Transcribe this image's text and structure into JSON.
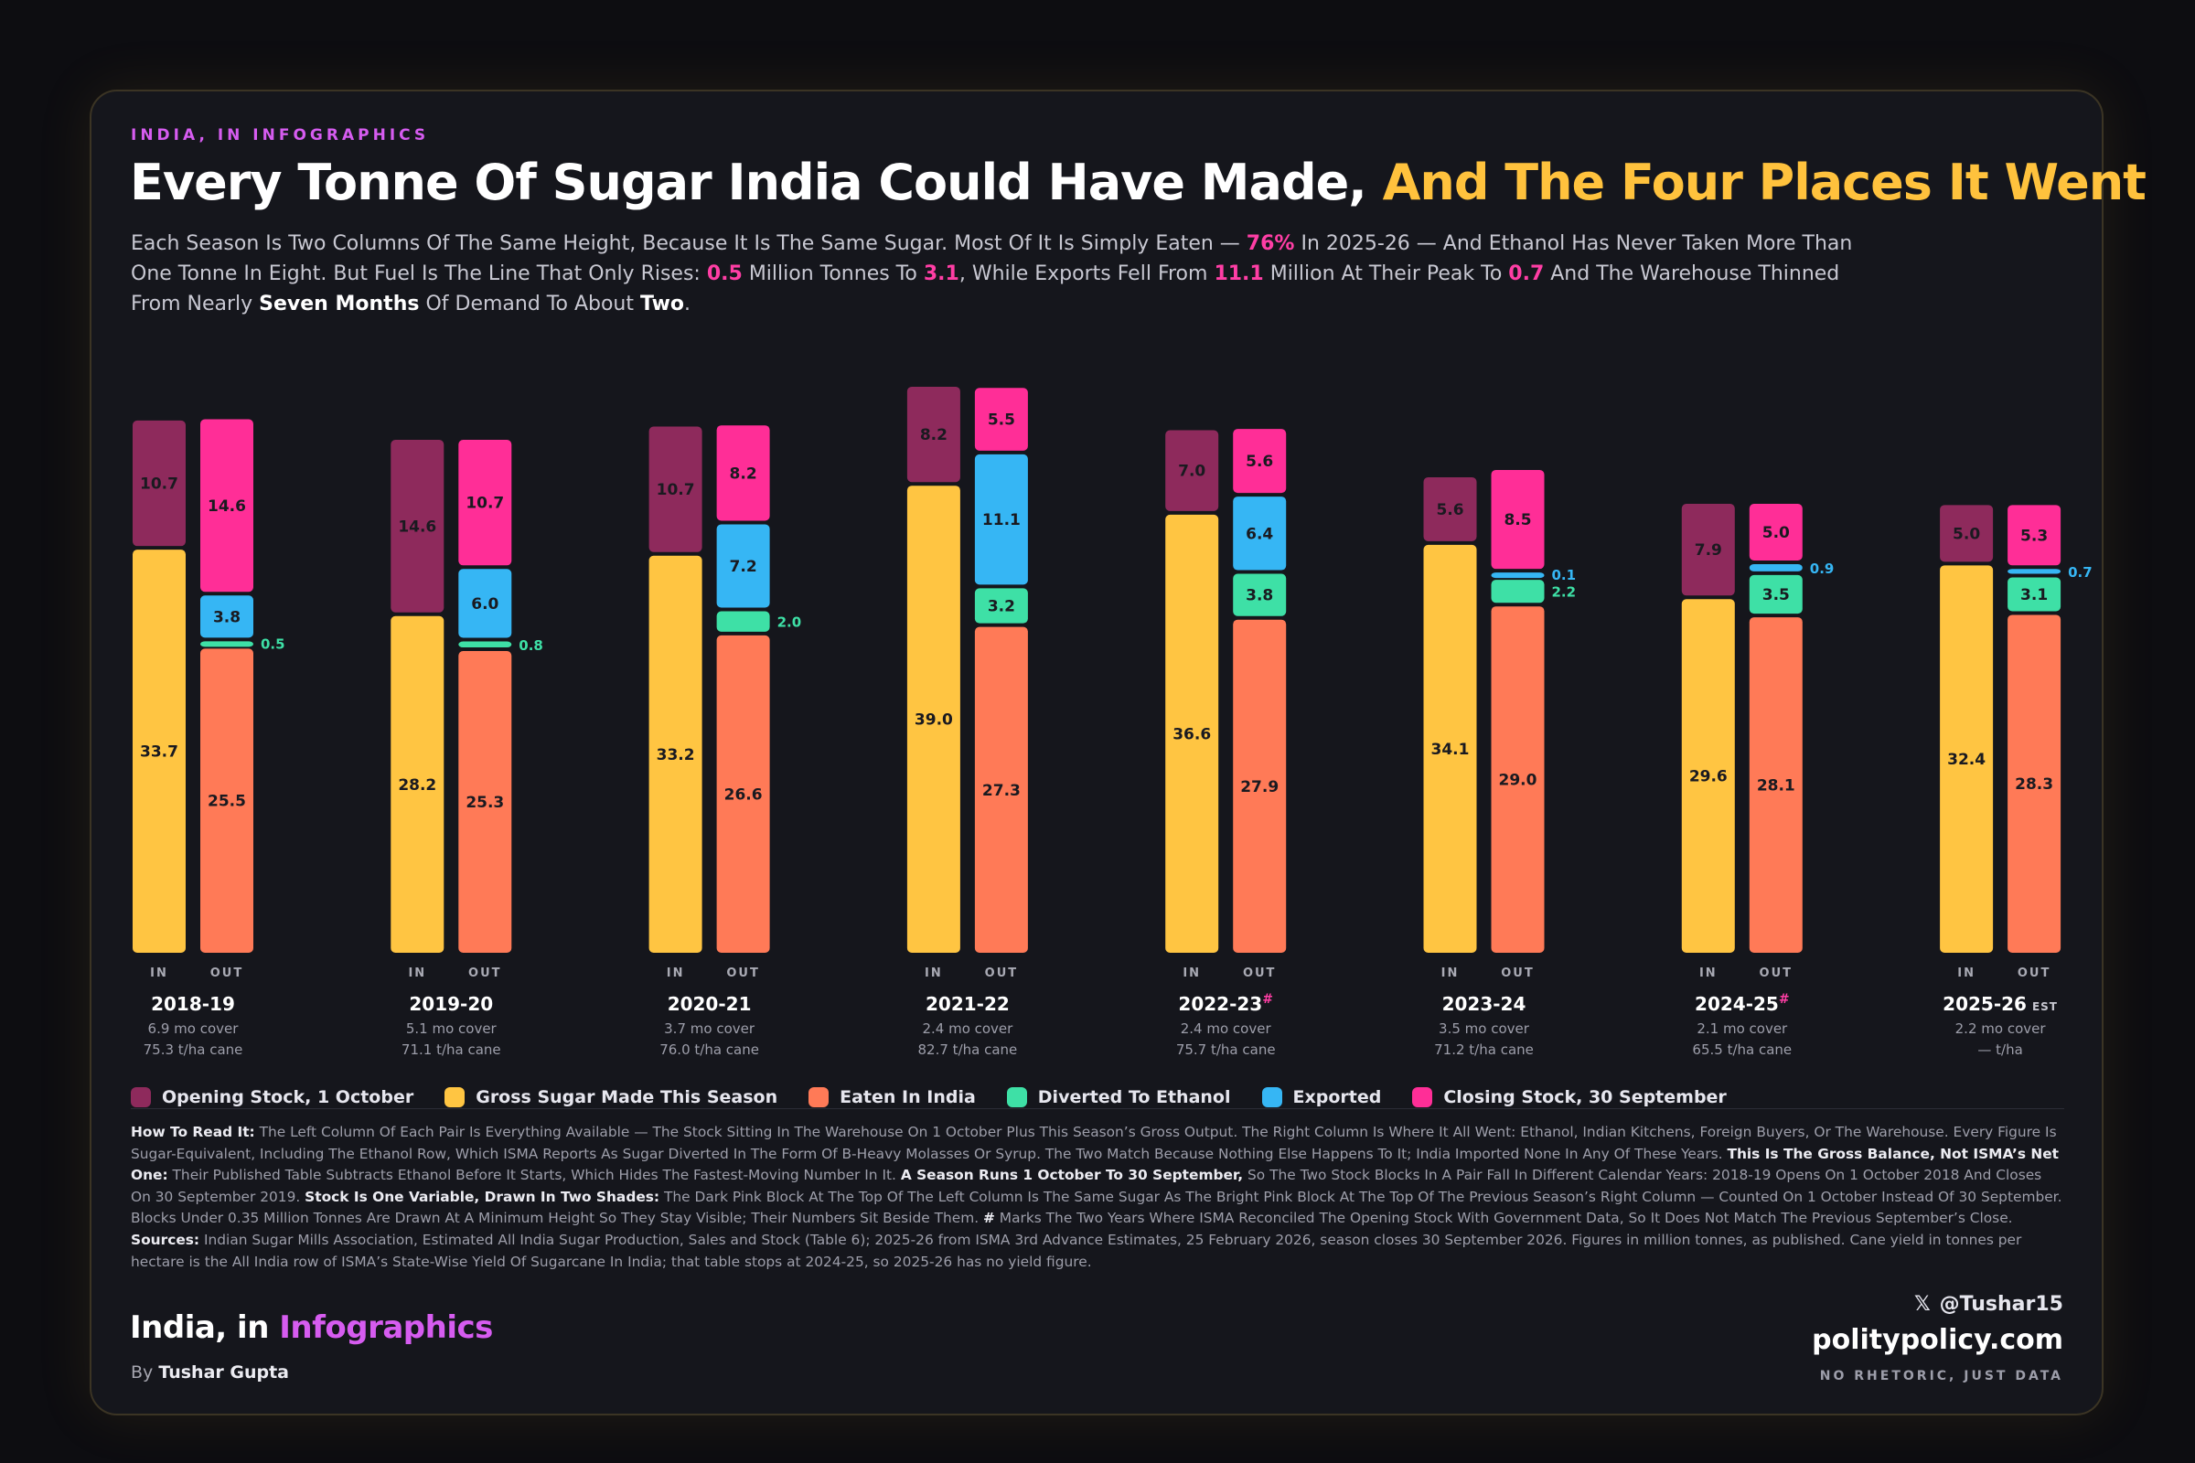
{
  "header": {
    "kicker": "INDIA, IN INFOGRAPHICS",
    "title_main": "Every Tonne Of Sugar India Could Have Made,",
    "title_highlight": " And The Four Places It Went",
    "subtitle": [
      {
        "t": "Each Season Is Two Columns Of The Same Height, Because It Is The Same Sugar. Most Of It Is Simply Eaten — "
      },
      {
        "t": "76%",
        "s": "pk"
      },
      {
        "t": " In 2025-26 — And Ethanol Has Never Taken More Than One Tonne In Eight. But Fuel Is The Line That Only Rises: "
      },
      {
        "t": "0.5",
        "s": "pk"
      },
      {
        "t": " Million Tonnes To "
      },
      {
        "t": "3.1",
        "s": "pk"
      },
      {
        "t": ", While Exports Fell From "
      },
      {
        "t": "11.1",
        "s": "pk"
      },
      {
        "t": " Million At Their Peak To "
      },
      {
        "t": "0.7",
        "s": "pk"
      },
      {
        "t": " And The Warehouse Thinned From Nearly "
      },
      {
        "t": "Seven Months",
        "s": "b"
      },
      {
        "t": " Of Demand To About "
      },
      {
        "t": "Two",
        "s": "b"
      },
      {
        "t": "."
      }
    ]
  },
  "colors": {
    "opening": "#8e2a5c",
    "gross": "#ffc542",
    "eaten": "#ff7a57",
    "ethanol": "#3ee0a6",
    "exported": "#36b6f4",
    "closing": "#ff2e97"
  },
  "chart_data": {
    "type": "bar",
    "stacked": true,
    "units": "million tonnes",
    "column_labels": [
      "IN",
      "OUT"
    ],
    "seasons": [
      {
        "season": "2018-19",
        "mark": "",
        "cover": "6.9 mo cover",
        "yield": "75.3 t/ha cane",
        "in": {
          "opening": 10.7,
          "gross": 33.7
        },
        "out": {
          "eaten": 25.5,
          "ethanol": 0.5,
          "exported": 3.8,
          "closing": 14.6
        }
      },
      {
        "season": "2019-20",
        "mark": "",
        "cover": "5.1 mo cover",
        "yield": "71.1 t/ha cane",
        "in": {
          "opening": 14.6,
          "gross": 28.2
        },
        "out": {
          "eaten": 25.3,
          "ethanol": 0.8,
          "exported": 6.0,
          "closing": 10.7
        }
      },
      {
        "season": "2020-21",
        "mark": "",
        "cover": "3.7 mo cover",
        "yield": "76.0 t/ha cane",
        "in": {
          "opening": 10.7,
          "gross": 33.2
        },
        "out": {
          "eaten": 26.6,
          "ethanol": 2.0,
          "exported": 7.2,
          "closing": 8.2
        }
      },
      {
        "season": "2021-22",
        "mark": "",
        "cover": "2.4 mo cover",
        "yield": "82.7 t/ha cane",
        "in": {
          "opening": 8.2,
          "gross": 39.0
        },
        "out": {
          "eaten": 27.3,
          "ethanol": 3.2,
          "exported": 11.1,
          "closing": 5.5
        }
      },
      {
        "season": "2022-23",
        "mark": "#",
        "cover": "2.4 mo cover",
        "yield": "75.7 t/ha cane",
        "in": {
          "opening": 7.0,
          "gross": 36.6
        },
        "out": {
          "eaten": 27.9,
          "ethanol": 3.8,
          "exported": 6.4,
          "closing": 5.6
        }
      },
      {
        "season": "2023-24",
        "mark": "",
        "cover": "3.5 mo cover",
        "yield": "71.2 t/ha cane",
        "in": {
          "opening": 5.6,
          "gross": 34.1
        },
        "out": {
          "eaten": 29.0,
          "ethanol": 2.2,
          "exported": 0.1,
          "closing": 8.5
        }
      },
      {
        "season": "2024-25",
        "mark": "#",
        "cover": "2.1 mo cover",
        "yield": "65.5 t/ha cane",
        "in": {
          "opening": 7.9,
          "gross": 29.6
        },
        "out": {
          "eaten": 28.1,
          "ethanol": 3.5,
          "exported": 0.9,
          "closing": 5.0
        }
      },
      {
        "season": "2025-26",
        "mark": "EST",
        "cover": "2.2 mo cover",
        "yield": "— t/ha",
        "in": {
          "opening": 5.0,
          "gross": 32.4
        },
        "out": {
          "eaten": 28.3,
          "ethanol": 3.1,
          "exported": 0.7,
          "closing": 5.3
        }
      }
    ]
  },
  "legend": [
    {
      "key": "opening",
      "label": "Opening Stock, 1 October"
    },
    {
      "key": "gross",
      "label": "Gross Sugar Made This Season"
    },
    {
      "key": "eaten",
      "label": "Eaten In India"
    },
    {
      "key": "ethanol",
      "label": "Diverted To Ethanol"
    },
    {
      "key": "exported",
      "label": "Exported"
    },
    {
      "key": "closing",
      "label": "Closing Stock, 30 September"
    }
  ],
  "notes": [
    {
      "t": "How To Read It:",
      "s": "b"
    },
    {
      "t": " The Left Column Of Each Pair Is Everything Available — The Stock Sitting In The Warehouse On 1 October Plus This Season’s Gross Output. The Right Column Is Where It All Went: Ethanol, Indian Kitchens, Foreign Buyers, Or The Warehouse. Every Figure Is Sugar-Equivalent, Including The Ethanol Row, Which ISMA Reports As Sugar Diverted In The Form Of B-Heavy Molasses Or Syrup. The Two Match Because Nothing Else Happens To It; India Imported None In Any Of These Years. "
    },
    {
      "t": "This Is The Gross Balance, Not ISMA’s Net One:",
      "s": "b"
    },
    {
      "t": " Their Published Table Subtracts Ethanol Before It Starts, Which Hides The Fastest-Moving Number In It. "
    },
    {
      "t": "A Season Runs 1 October To 30 September,",
      "s": "b"
    },
    {
      "t": " So The Two Stock Blocks In A Pair Fall In Different Calendar Years: 2018-19 Opens On 1 October 2018 And Closes On 30 September 2019. "
    },
    {
      "t": "Stock Is One Variable, Drawn In Two Shades:",
      "s": "b"
    },
    {
      "t": " The Dark Pink Block At The Top Of The Left Column Is The Same Sugar As The Bright Pink Block At The Top Of The Previous Season’s Right Column — Counted On 1 October Instead Of 30 September. Blocks Under 0.35 Million Tonnes Are Drawn At A Minimum Height So They Stay Visible; Their Numbers Sit Beside Them. "
    },
    {
      "t": "#",
      "s": "b"
    },
    {
      "t": " Marks The Two Years Where ISMA Reconciled The Opening Stock With Government Data, So It Does Not Match The Previous September’s Close. "
    },
    {
      "t": "Sources:",
      "s": "b"
    },
    {
      "t": " Indian Sugar Mills Association, Estimated All India Sugar Production, Sales and Stock (Table 6); 2025-26 from ISMA 3rd Advance Estimates, 25 February 2026, season closes 30 September 2026. Figures in million tonnes, as published. Cane yield in tonnes per hectare is the All India row of ISMA’s State-Wise Yield Of Sugarcane In India; that table stops at 2024-25, so 2025-26 has no yield figure."
    }
  ],
  "footer": {
    "brand_main": "India, in ",
    "brand_highlight": "Infographics",
    "by_prefix": "By ",
    "author": "Tushar Gupta",
    "x_glyph": "𝕏",
    "handle": "@Tushar15",
    "site": "politypolicy.com",
    "tagline": "NO RHETORIC, JUST DATA"
  }
}
